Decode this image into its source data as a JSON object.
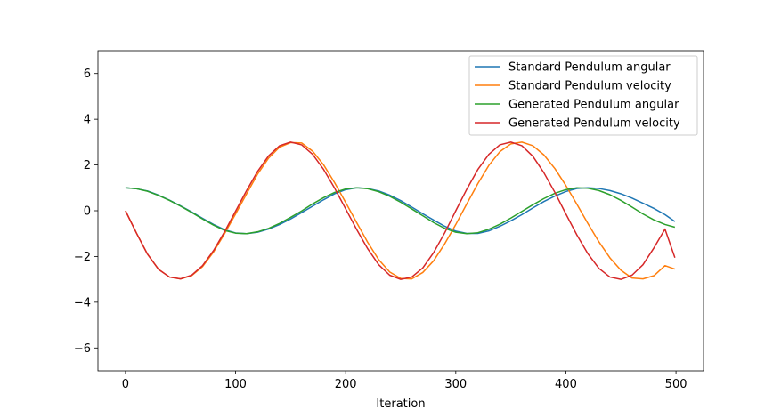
{
  "chart_data": {
    "type": "line",
    "title": "",
    "xlabel": "Iteration",
    "ylabel": "",
    "xlim": [
      -25,
      525
    ],
    "ylim": [
      -7,
      7
    ],
    "xticks": [
      0,
      100,
      200,
      300,
      400,
      500
    ],
    "yticks": [
      -6,
      -4,
      -2,
      0,
      2,
      4,
      6
    ],
    "ytick_labels": [
      "−6",
      "−4",
      "−2",
      "0",
      "2",
      "4",
      "6"
    ],
    "grid": false,
    "legend_position": "top-right",
    "series": [
      {
        "name": "Standard Pendulum angular",
        "color": "#1f77b4",
        "x": [
          0,
          10,
          20,
          30,
          40,
          50,
          60,
          70,
          80,
          90,
          100,
          110,
          120,
          130,
          140,
          150,
          160,
          170,
          180,
          190,
          200,
          210,
          220,
          230,
          240,
          250,
          260,
          270,
          280,
          290,
          300,
          310,
          320,
          330,
          340,
          350,
          360,
          370,
          380,
          390,
          400,
          410,
          420,
          430,
          440,
          450,
          460,
          470,
          480,
          490,
          499
        ],
        "y": [
          1.0,
          0.96,
          0.86,
          0.68,
          0.46,
          0.21,
          -0.05,
          -0.33,
          -0.6,
          -0.83,
          -0.97,
          -1.0,
          -0.94,
          -0.8,
          -0.6,
          -0.36,
          -0.08,
          0.2,
          0.48,
          0.74,
          0.92,
          1.0,
          0.97,
          0.86,
          0.68,
          0.44,
          0.16,
          -0.13,
          -0.41,
          -0.68,
          -0.89,
          -0.99,
          -0.99,
          -0.88,
          -0.68,
          -0.44,
          -0.17,
          0.12,
          0.4,
          0.64,
          0.84,
          0.97,
          1.0,
          0.97,
          0.88,
          0.74,
          0.55,
          0.33,
          0.1,
          -0.17,
          -0.47
        ]
      },
      {
        "name": "Standard Pendulum velocity",
        "color": "#ff7f0e",
        "x": [
          0,
          10,
          20,
          30,
          40,
          50,
          60,
          70,
          80,
          90,
          100,
          110,
          120,
          130,
          140,
          150,
          160,
          170,
          180,
          190,
          200,
          210,
          220,
          230,
          240,
          250,
          260,
          270,
          280,
          290,
          300,
          310,
          320,
          330,
          340,
          350,
          360,
          370,
          380,
          390,
          400,
          410,
          420,
          430,
          440,
          450,
          460,
          470,
          480,
          490,
          499
        ],
        "y": [
          0.0,
          -0.98,
          -1.9,
          -2.56,
          -2.9,
          -2.98,
          -2.84,
          -2.44,
          -1.8,
          -1.0,
          -0.14,
          0.74,
          1.6,
          2.3,
          2.78,
          2.98,
          2.96,
          2.6,
          2.0,
          1.22,
          0.36,
          -0.52,
          -1.38,
          -2.14,
          -2.68,
          -2.96,
          -2.98,
          -2.7,
          -2.18,
          -1.44,
          -0.6,
          0.3,
          1.18,
          1.98,
          2.58,
          2.92,
          3.0,
          2.84,
          2.44,
          1.84,
          1.1,
          0.28,
          -0.56,
          -1.36,
          -2.06,
          -2.6,
          -2.94,
          -2.98,
          -2.84,
          -2.4,
          -2.55
        ]
      },
      {
        "name": "Generated Pendulum angular",
        "color": "#2ca02c",
        "x": [
          0,
          10,
          20,
          30,
          40,
          50,
          60,
          70,
          80,
          90,
          100,
          110,
          120,
          130,
          140,
          150,
          160,
          170,
          180,
          190,
          200,
          210,
          220,
          230,
          240,
          250,
          260,
          270,
          280,
          290,
          300,
          310,
          320,
          330,
          340,
          350,
          360,
          370,
          380,
          390,
          400,
          410,
          420,
          430,
          440,
          450,
          460,
          470,
          480,
          490,
          499
        ],
        "y": [
          1.0,
          0.96,
          0.85,
          0.67,
          0.45,
          0.2,
          -0.07,
          -0.36,
          -0.63,
          -0.86,
          -0.98,
          -1.0,
          -0.92,
          -0.77,
          -0.55,
          -0.29,
          -0.01,
          0.3,
          0.57,
          0.8,
          0.95,
          1.0,
          0.96,
          0.83,
          0.63,
          0.37,
          0.08,
          -0.22,
          -0.52,
          -0.77,
          -0.94,
          -1.0,
          -0.96,
          -0.81,
          -0.59,
          -0.32,
          -0.03,
          0.26,
          0.53,
          0.76,
          0.92,
          1.0,
          0.98,
          0.88,
          0.7,
          0.45,
          0.16,
          -0.14,
          -0.4,
          -0.6,
          -0.72
        ]
      },
      {
        "name": "Generated Pendulum velocity",
        "color": "#d62728",
        "x": [
          0,
          10,
          20,
          30,
          40,
          50,
          60,
          70,
          80,
          90,
          100,
          110,
          120,
          130,
          140,
          150,
          160,
          170,
          180,
          190,
          200,
          210,
          220,
          230,
          240,
          250,
          260,
          270,
          280,
          290,
          300,
          310,
          320,
          330,
          340,
          350,
          360,
          370,
          380,
          390,
          400,
          410,
          420,
          430,
          440,
          450,
          460,
          470,
          480,
          490,
          499
        ],
        "y": [
          0.0,
          -0.98,
          -1.9,
          -2.56,
          -2.9,
          -2.98,
          -2.82,
          -2.4,
          -1.74,
          -0.92,
          -0.02,
          0.88,
          1.72,
          2.4,
          2.84,
          3.0,
          2.88,
          2.46,
          1.8,
          0.98,
          0.08,
          -0.82,
          -1.66,
          -2.36,
          -2.82,
          -3.0,
          -2.9,
          -2.5,
          -1.82,
          -0.96,
          0.0,
          0.94,
          1.8,
          2.46,
          2.88,
          3.0,
          2.84,
          2.38,
          1.66,
          0.8,
          -0.14,
          -1.06,
          -1.88,
          -2.52,
          -2.9,
          -3.0,
          -2.82,
          -2.36,
          -1.62,
          -0.8,
          -2.05
        ]
      }
    ]
  }
}
